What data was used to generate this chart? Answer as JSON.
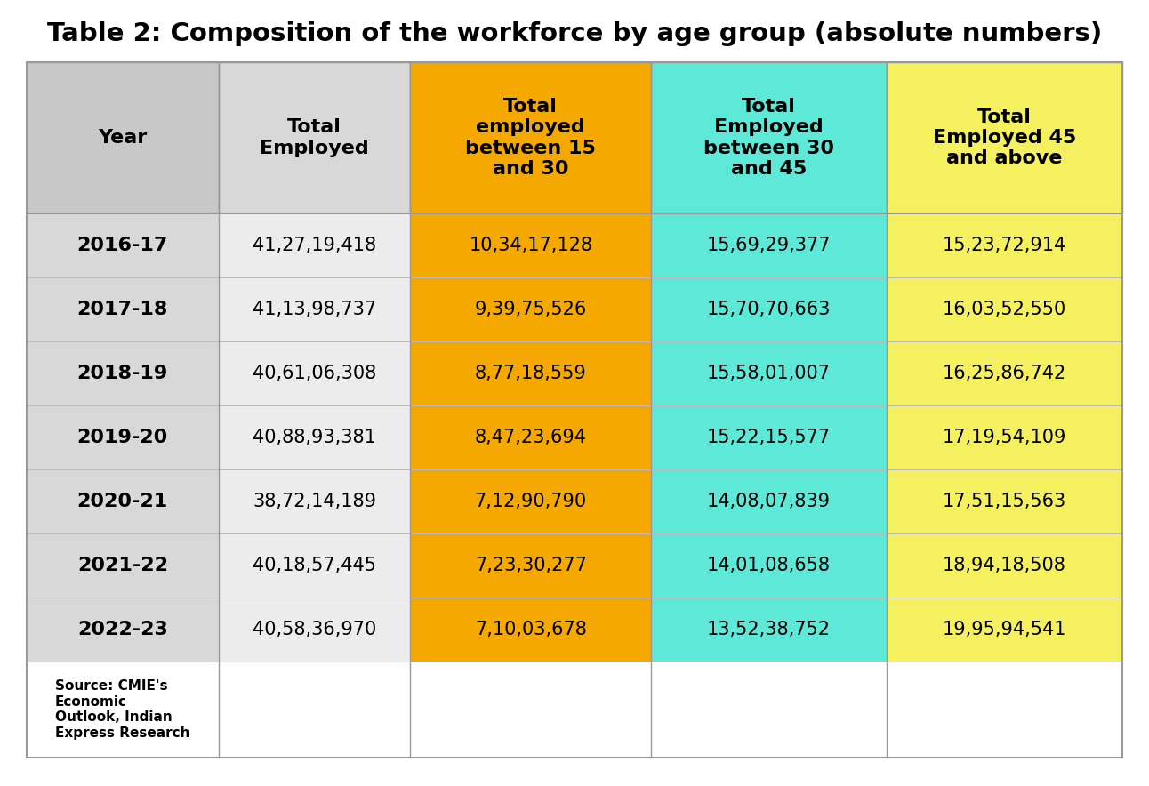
{
  "title": "Table 2: Composition of the workforce by age group (absolute numbers)",
  "columns": [
    "Year",
    "Total\nEmployed",
    "Total\nemployed\nbetween 15\nand 30",
    "Total\nEmployed\nbetween 30\nand 45",
    "Total\nEmployed 45\nand above"
  ],
  "col_colors": [
    "#c8c8c8",
    "#d8d8d8",
    "#f5a800",
    "#5de8d8",
    "#f5f060"
  ],
  "data_col_colors": [
    "#d8d8d8",
    "#ececec",
    "#f5a800",
    "#5de8d8",
    "#f5f060"
  ],
  "rows": [
    [
      "2016-17",
      "41,27,19,418",
      "10,34,17,128",
      "15,69,29,377",
      "15,23,72,914"
    ],
    [
      "2017-18",
      "41,13,98,737",
      "9,39,75,526",
      "15,70,70,663",
      "16,03,52,550"
    ],
    [
      "2018-19",
      "40,61,06,308",
      "8,77,18,559",
      "15,58,01,007",
      "16,25,86,742"
    ],
    [
      "2019-20",
      "40,88,93,381",
      "8,47,23,694",
      "15,22,15,577",
      "17,19,54,109"
    ],
    [
      "2020-21",
      "38,72,14,189",
      "7,12,90,790",
      "14,08,07,839",
      "17,51,15,563"
    ],
    [
      "2021-22",
      "40,18,57,445",
      "7,23,30,277",
      "14,01,08,658",
      "18,94,18,508"
    ],
    [
      "2022-23",
      "40,58,36,970",
      "7,10,03,678",
      "13,52,38,752",
      "19,95,94,541"
    ]
  ],
  "source_text": "Source: CMIE's\nEconomic\nOutlook, Indian\nExpress Research",
  "background_color": "#ffffff",
  "title_fontsize": 21,
  "header_fontsize": 16,
  "cell_fontsize": 15,
  "year_fontsize": 16,
  "source_fontsize": 11,
  "border_color": "#999999",
  "divider_color": "#bbbbbb"
}
